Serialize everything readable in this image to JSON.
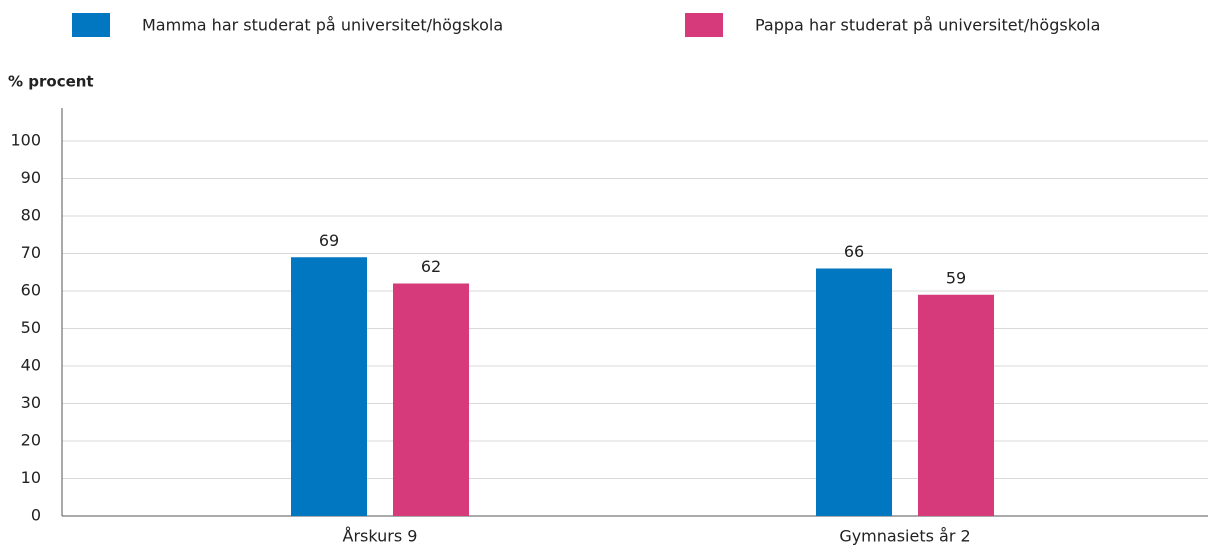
{
  "chart_data": {
    "type": "bar",
    "y_label": "% procent",
    "categories": [
      "Årskurs 9",
      "Gymnasiets år 2"
    ],
    "series": [
      {
        "name": "Mamma har studerat på universitet/högskola",
        "color": "#0077c0",
        "values": [
          69,
          66
        ]
      },
      {
        "name": "Pappa har studerat på universitet/högskola",
        "color": "#d63a7a",
        "values": [
          62,
          59
        ]
      }
    ],
    "ylim": [
      0,
      100
    ],
    "yticks": [
      0,
      10,
      20,
      30,
      40,
      50,
      60,
      70,
      80,
      90,
      100
    ],
    "grid": true,
    "legend": "top"
  }
}
